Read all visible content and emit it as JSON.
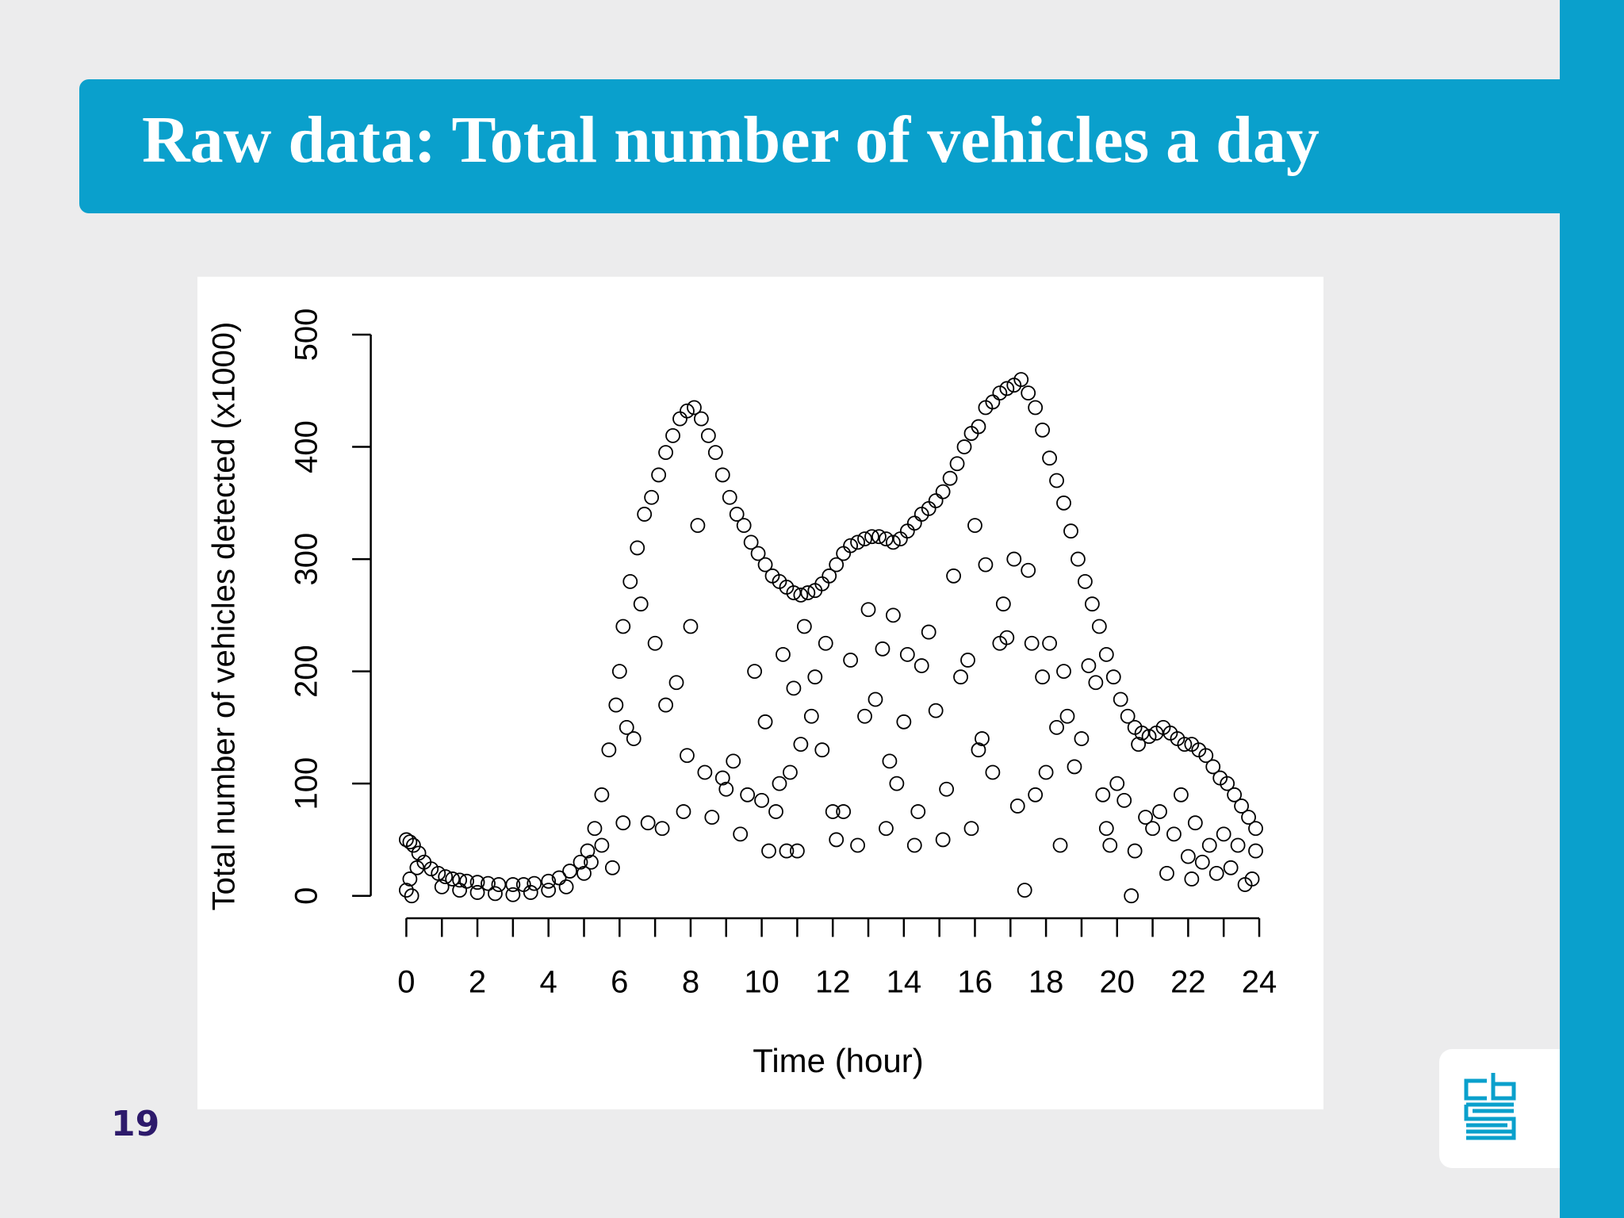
{
  "slide": {
    "title": "Raw data: Total number of vehicles a day",
    "page_number": "19"
  },
  "chart_data": {
    "type": "scatter",
    "y_label": "Total number of vehicles detected (x1000)",
    "x_label": "Time (hour)",
    "xlim": [
      -1,
      24
    ],
    "ylim": [
      -20,
      500
    ],
    "xticks": [
      0,
      2,
      4,
      6,
      8,
      10,
      12,
      14,
      16,
      18,
      20,
      22,
      24
    ],
    "xminor_ticks": [
      1,
      3,
      5,
      7,
      9,
      11,
      13,
      15,
      17,
      19,
      21,
      23
    ],
    "yticks": [
      0,
      100,
      200,
      300,
      400,
      500
    ],
    "color": "#000000",
    "x": [
      0,
      0.1,
      0.2,
      0.35,
      0.5,
      0.7,
      0.9,
      1.1,
      1.3,
      1.5,
      1.7,
      2,
      2.3,
      2.6,
      3,
      3.3,
      3.6,
      4,
      4.3,
      4.6,
      4.9,
      5.1,
      5.3,
      5.5,
      5.7,
      5.9,
      6.0,
      6.1,
      6.3,
      6.5,
      6.7,
      6.9,
      7.1,
      7.3,
      7.5,
      7.7,
      7.9,
      8.1,
      8.3,
      8.5,
      8.7,
      8.9,
      9.1,
      9.3,
      9.5,
      9.7,
      9.9,
      10.1,
      10.3,
      10.5,
      10.7,
      10.9,
      11.1,
      11.3,
      11.5,
      11.7,
      11.9,
      12.1,
      12.3,
      12.5,
      12.7,
      12.9,
      13.1,
      13.3,
      13.5,
      13.7,
      13.9,
      14.1,
      14.3,
      14.5,
      14.7,
      14.9,
      15.1,
      15.3,
      15.5,
      15.7,
      15.9,
      16.1,
      16.3,
      16.5,
      16.7,
      16.9,
      17.1,
      17.3,
      17.5,
      17.7,
      17.9,
      18.1,
      18.3,
      18.5,
      18.7,
      18.9,
      19.1,
      19.3,
      19.5,
      19.7,
      19.9,
      20.1,
      20.3,
      20.5,
      20.7,
      20.9,
      21.1,
      21.3,
      21.5,
      21.7,
      21.9,
      22.1,
      22.3,
      22.5,
      22.7,
      22.9,
      23.1,
      23.3,
      23.5,
      23.7,
      23.9,
      0,
      0.1,
      0.15,
      0.3,
      1,
      1.5,
      2,
      2.5,
      3,
      3.5,
      4,
      4.5,
      5,
      5.2,
      5.5,
      5.8,
      6.1,
      6.2,
      6.4,
      6.6,
      6.8,
      7,
      7.2,
      7.3,
      7.6,
      7.8,
      7.9,
      8,
      8.2,
      8.4,
      8.6,
      8.9,
      9,
      9.2,
      9.4,
      9.6,
      9.8,
      10,
      10.1,
      10.2,
      10.4,
      10.5,
      10.6,
      10.7,
      10.8,
      10.9,
      11,
      11.1,
      11.2,
      11.4,
      11.5,
      11.7,
      11.8,
      12,
      12.1,
      12.3,
      12.5,
      12.7,
      12.9,
      13,
      13.2,
      13.4,
      13.5,
      13.6,
      13.7,
      13.8,
      14,
      14.1,
      14.3,
      14.4,
      14.5,
      14.7,
      14.9,
      15.1,
      15.2,
      15.4,
      15.6,
      15.8,
      15.9,
      16,
      16.1,
      16.2,
      16.3,
      16.5,
      16.7,
      16.8,
      16.9,
      17.1,
      17.2,
      17.4,
      17.5,
      17.6,
      17.7,
      17.9,
      18,
      18.1,
      18.3,
      18.4,
      18.5,
      18.6,
      18.8,
      19,
      19.2,
      19.4,
      19.6,
      19.7,
      19.8,
      20,
      20.2,
      20.4,
      20.5,
      20.6,
      20.8,
      21,
      21.2,
      21.4,
      21.6,
      21.8,
      22,
      22.1,
      22.2,
      22.4,
      22.6,
      22.8,
      23,
      23.2,
      23.4,
      23.6,
      23.8,
      23.9
    ],
    "values": [
      50,
      48,
      45,
      38,
      30,
      24,
      20,
      17,
      15,
      14,
      13,
      12,
      11,
      10,
      10,
      10,
      11,
      13,
      16,
      22,
      30,
      40,
      60,
      90,
      130,
      170,
      200,
      240,
      280,
      310,
      340,
      355,
      375,
      395,
      410,
      425,
      432,
      435,
      425,
      410,
      395,
      375,
      355,
      340,
      330,
      315,
      305,
      295,
      285,
      280,
      275,
      270,
      268,
      270,
      272,
      278,
      285,
      295,
      305,
      312,
      315,
      318,
      320,
      320,
      318,
      315,
      318,
      325,
      332,
      340,
      345,
      352,
      360,
      372,
      385,
      400,
      412,
      418,
      435,
      440,
      448,
      452,
      455,
      460,
      448,
      435,
      415,
      390,
      370,
      350,
      325,
      300,
      280,
      260,
      240,
      215,
      195,
      175,
      160,
      150,
      145,
      142,
      145,
      150,
      145,
      140,
      135,
      135,
      130,
      125,
      115,
      105,
      100,
      90,
      80,
      70,
      60,
      5,
      15,
      0,
      25,
      8,
      5,
      3,
      2,
      1,
      3,
      5,
      8,
      20,
      30,
      45,
      25,
      65,
      150,
      140,
      260,
      65,
      225,
      60,
      170,
      190,
      75,
      125,
      240,
      330,
      110,
      70,
      105,
      95,
      120,
      55,
      90,
      200,
      85,
      155,
      40,
      75,
      100,
      215,
      40,
      110,
      185,
      40,
      135,
      240,
      160,
      195,
      130,
      225,
      75,
      50,
      75,
      210,
      45,
      160,
      255,
      175,
      220,
      60,
      120,
      250,
      100,
      155,
      215,
      45,
      75,
      205,
      235,
      165,
      50,
      95,
      285,
      195,
      210,
      60,
      330,
      130,
      140,
      295,
      110,
      225,
      260,
      230,
      300,
      80,
      5,
      290,
      225,
      90,
      195,
      110,
      225,
      150,
      45,
      200,
      160,
      115,
      140,
      205,
      190,
      90,
      60,
      45,
      100,
      85,
      0,
      40,
      135,
      70,
      60,
      75,
      20,
      55,
      90,
      35,
      15,
      65,
      30,
      45,
      20,
      55,
      25,
      45,
      10,
      15,
      40
    ]
  }
}
